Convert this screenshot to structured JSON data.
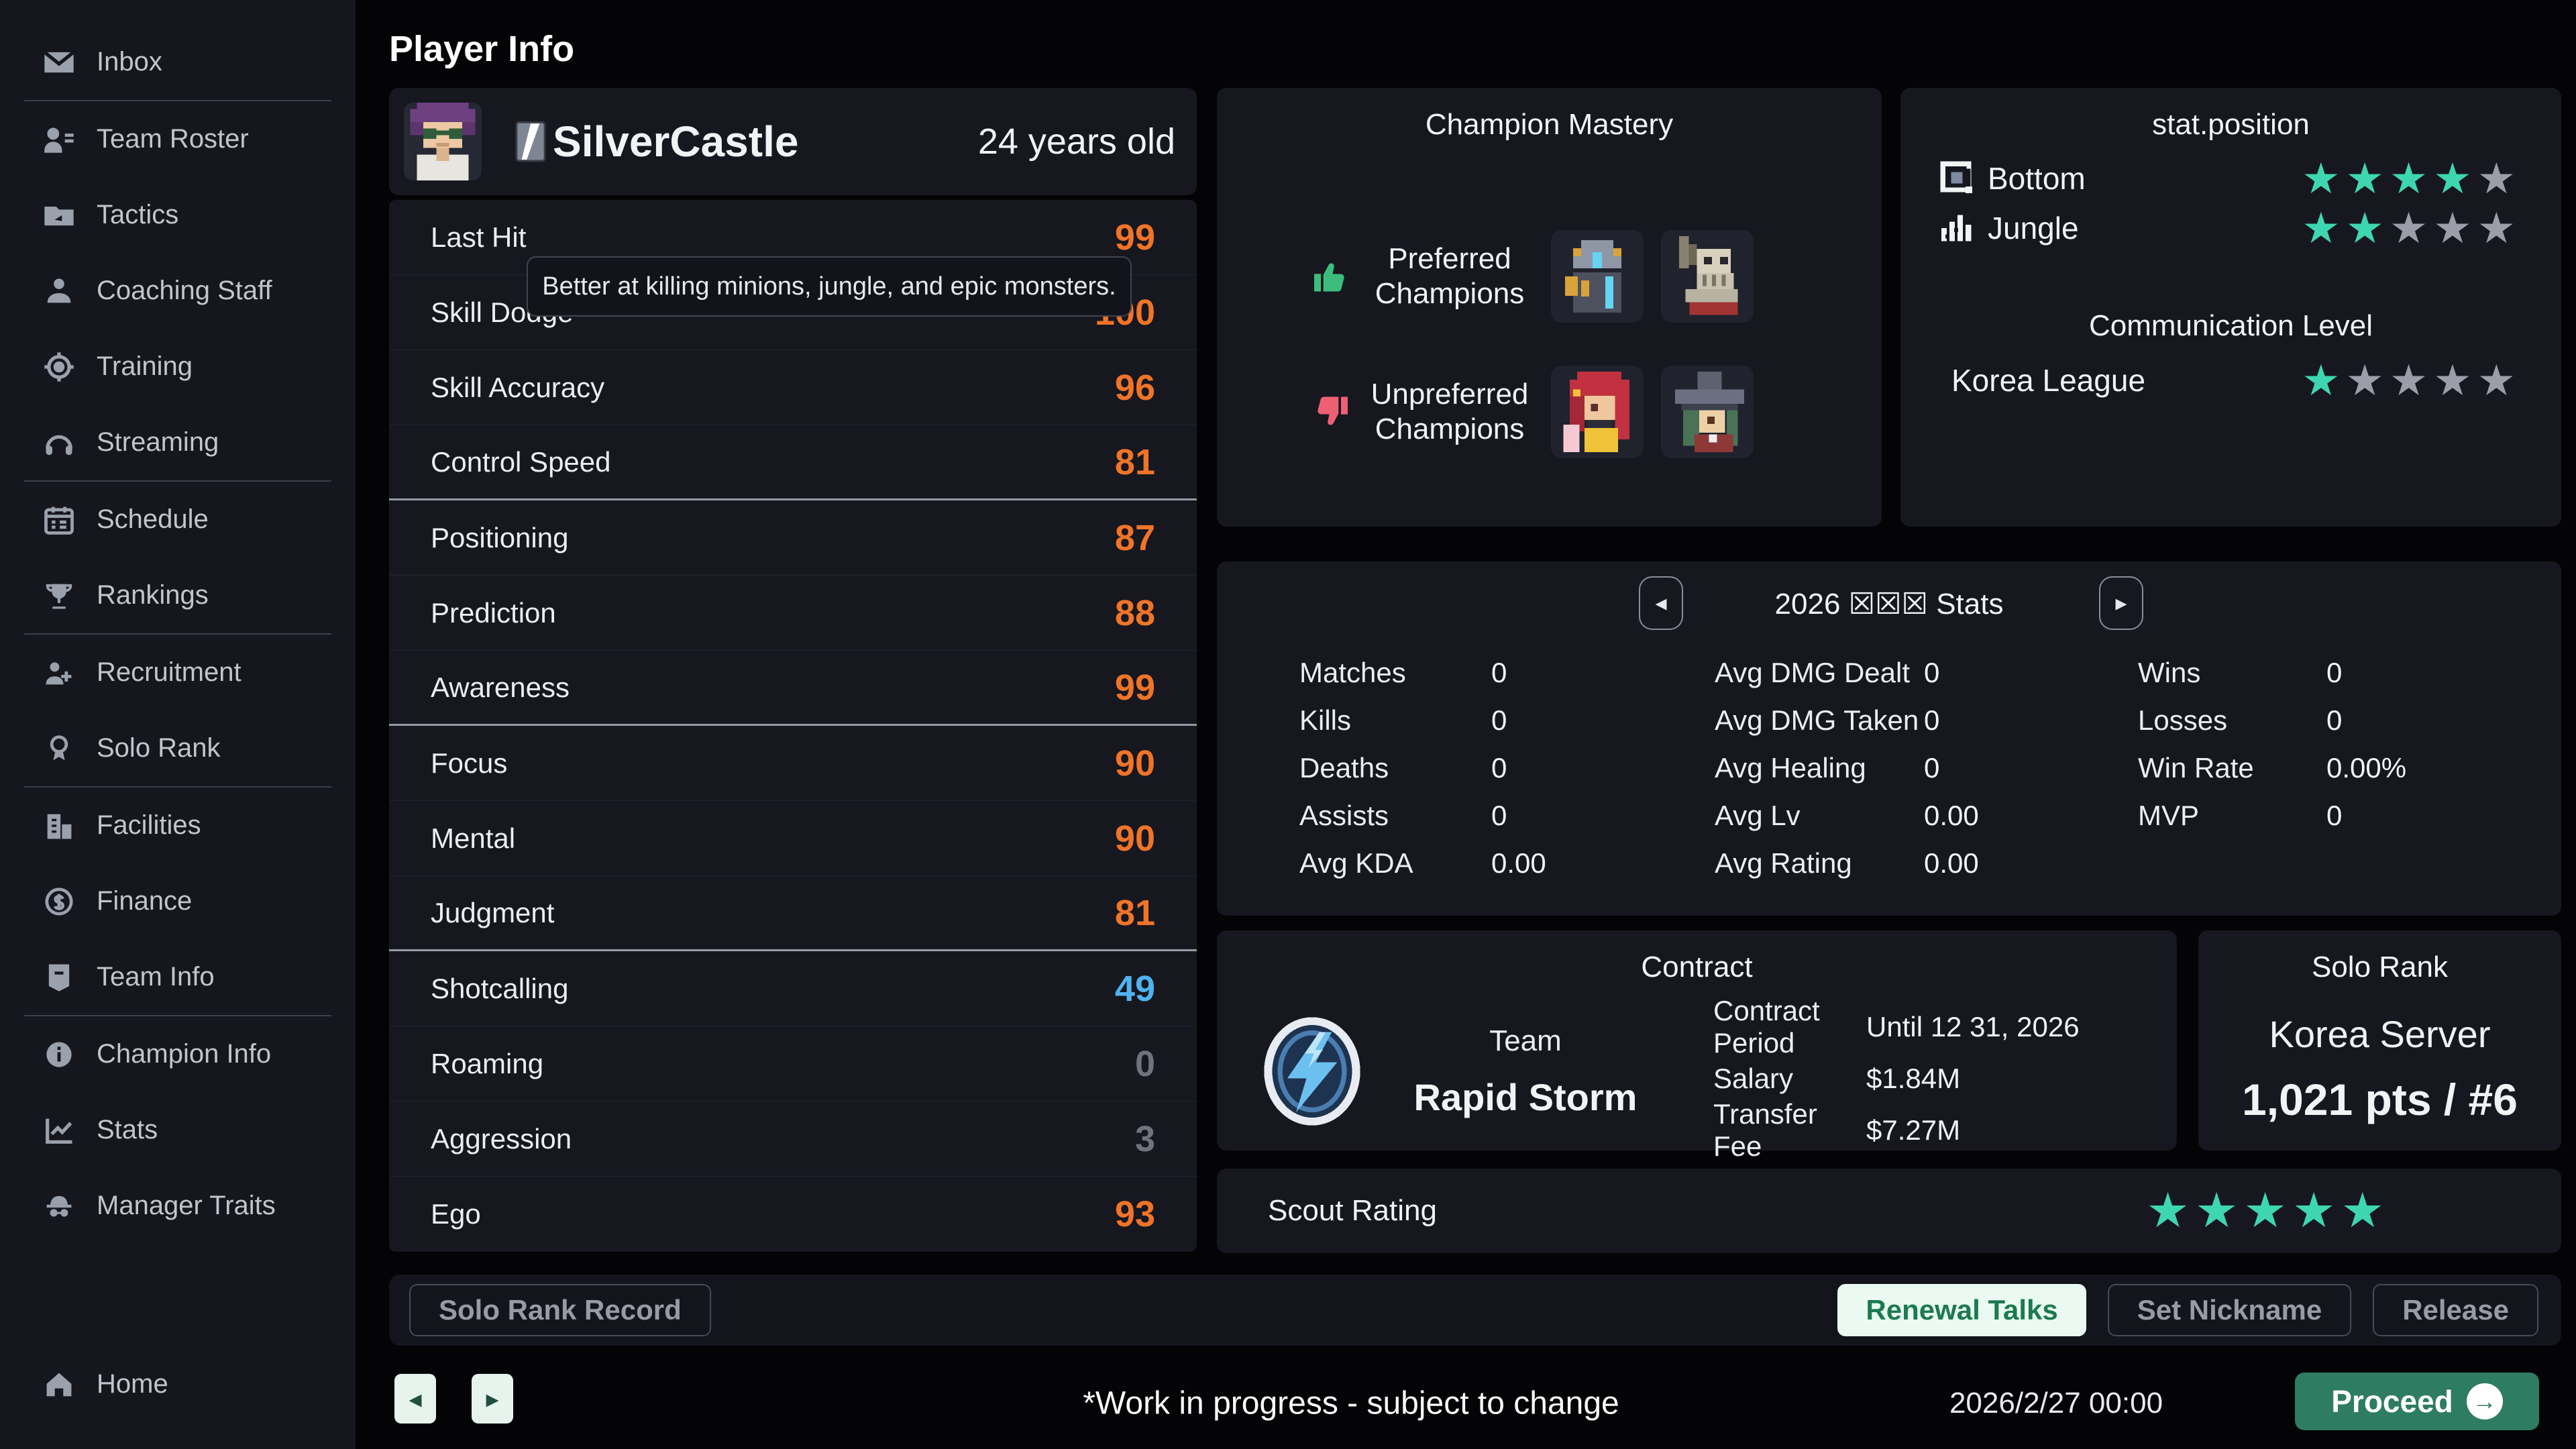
{
  "colors": {
    "accent_orange": "#f07428",
    "accent_blue": "#4fb3f0",
    "muted_value": "#70737e",
    "star_filled": "#3ed6b0",
    "star_empty": "#9b9ea8",
    "thumb_up": "#3dbd7d",
    "thumb_down": "#ef5f74"
  },
  "page": {
    "title": "Player Info"
  },
  "sidebar": {
    "items": [
      {
        "label": "Inbox"
      },
      {
        "label": "Team Roster"
      },
      {
        "label": "Tactics"
      },
      {
        "label": "Coaching Staff"
      },
      {
        "label": "Training"
      },
      {
        "label": "Streaming"
      },
      {
        "label": "Schedule"
      },
      {
        "label": "Rankings"
      },
      {
        "label": "Recruitment"
      },
      {
        "label": "Solo Rank"
      },
      {
        "label": "Facilities"
      },
      {
        "label": "Finance"
      },
      {
        "label": "Team Info"
      },
      {
        "label": "Champion Info"
      },
      {
        "label": "Stats"
      },
      {
        "label": "Manager Traits"
      },
      {
        "label": "Home"
      }
    ]
  },
  "player": {
    "name": "SilverCastle",
    "age": "24 years old"
  },
  "tooltip": {
    "text": "Better at killing minions, jungle, and epic monsters."
  },
  "attributes": {
    "rows": [
      {
        "label": "Last Hit",
        "value": "99",
        "color": "#f07428"
      },
      {
        "label": "Skill Dodge",
        "value": "100",
        "color": "#f07428"
      },
      {
        "label": "Skill Accuracy",
        "value": "96",
        "color": "#f07428"
      },
      {
        "label": "Control Speed",
        "value": "81",
        "color": "#f07428"
      },
      {
        "label": "Positioning",
        "value": "87",
        "color": "#f07428"
      },
      {
        "label": "Prediction",
        "value": "88",
        "color": "#f07428"
      },
      {
        "label": "Awareness",
        "value": "99",
        "color": "#f07428"
      },
      {
        "label": "Focus",
        "value": "90",
        "color": "#f07428"
      },
      {
        "label": "Mental",
        "value": "90",
        "color": "#f07428"
      },
      {
        "label": "Judgment",
        "value": "81",
        "color": "#f07428"
      },
      {
        "label": "Shotcalling",
        "value": "49",
        "color": "#4fb3f0"
      },
      {
        "label": "Roaming",
        "value": "0",
        "color": "#70737e"
      },
      {
        "label": "Aggression",
        "value": "3",
        "color": "#70737e"
      },
      {
        "label": "Ego",
        "value": "93",
        "color": "#f07428"
      }
    ]
  },
  "mastery": {
    "title": "Champion Mastery",
    "preferred_line1": "Preferred",
    "preferred_line2": "Champions",
    "unpreferred_line1": "Unpreferred",
    "unpreferred_line2": "Champions",
    "preferred_icons": [
      "robot-champion",
      "skeleton-knight-champion"
    ],
    "unpreferred_icons": [
      "red-haired-champion",
      "witch-champion"
    ]
  },
  "position": {
    "title": "stat.position",
    "rows": [
      {
        "label": "Bottom",
        "stars": 4
      },
      {
        "label": "Jungle",
        "stars": 2
      }
    ],
    "comm_title": "Communication Level",
    "comm_row": {
      "label": "Korea League",
      "stars": 1
    }
  },
  "season": {
    "title": "2026 ☒☒☒ Stats",
    "prev": "◂",
    "next": "▸",
    "col1": [
      {
        "label": "Matches",
        "value": "0"
      },
      {
        "label": "Kills",
        "value": "0"
      },
      {
        "label": "Deaths",
        "value": "0"
      },
      {
        "label": "Assists",
        "value": "0"
      },
      {
        "label": "Avg KDA",
        "value": "0.00"
      }
    ],
    "col2": [
      {
        "label": "Avg DMG Dealt",
        "value": "0"
      },
      {
        "label": "Avg DMG Taken",
        "value": "0"
      },
      {
        "label": "Avg Healing",
        "value": "0"
      },
      {
        "label": "Avg Lv",
        "value": "0.00"
      },
      {
        "label": "Avg Rating",
        "value": "0.00"
      }
    ],
    "col3": [
      {
        "label": "Wins",
        "value": "0"
      },
      {
        "label": "Losses",
        "value": "0"
      },
      {
        "label": "Win Rate",
        "value": "0.00%"
      },
      {
        "label": "MVP",
        "value": "0"
      }
    ]
  },
  "contract": {
    "title": "Contract",
    "team_word": "Team",
    "team_name": "Rapid Storm",
    "rows": [
      {
        "label1": "Contract",
        "label2": "Period",
        "value": "Until 12 31, 2026"
      },
      {
        "label1": "Salary",
        "label2": "",
        "value": "$1.84M"
      },
      {
        "label1": "Transfer",
        "label2": "Fee",
        "value": "$7.27M"
      }
    ]
  },
  "solo_rank": {
    "title": "Solo Rank",
    "server": "Korea Server",
    "points": "1,021 pts / #6"
  },
  "scout": {
    "label": "Scout Rating",
    "stars": 5
  },
  "actions": {
    "solo_record": "Solo Rank Record",
    "renewal": "Renewal Talks",
    "nickname": "Set Nickname",
    "release": "Release"
  },
  "footer": {
    "prev": "◂",
    "next": "▸",
    "wip": "*Work in progress - subject to change",
    "date": "2026/2/27 00:00",
    "proceed": "Proceed",
    "proceed_arrow": "→"
  }
}
